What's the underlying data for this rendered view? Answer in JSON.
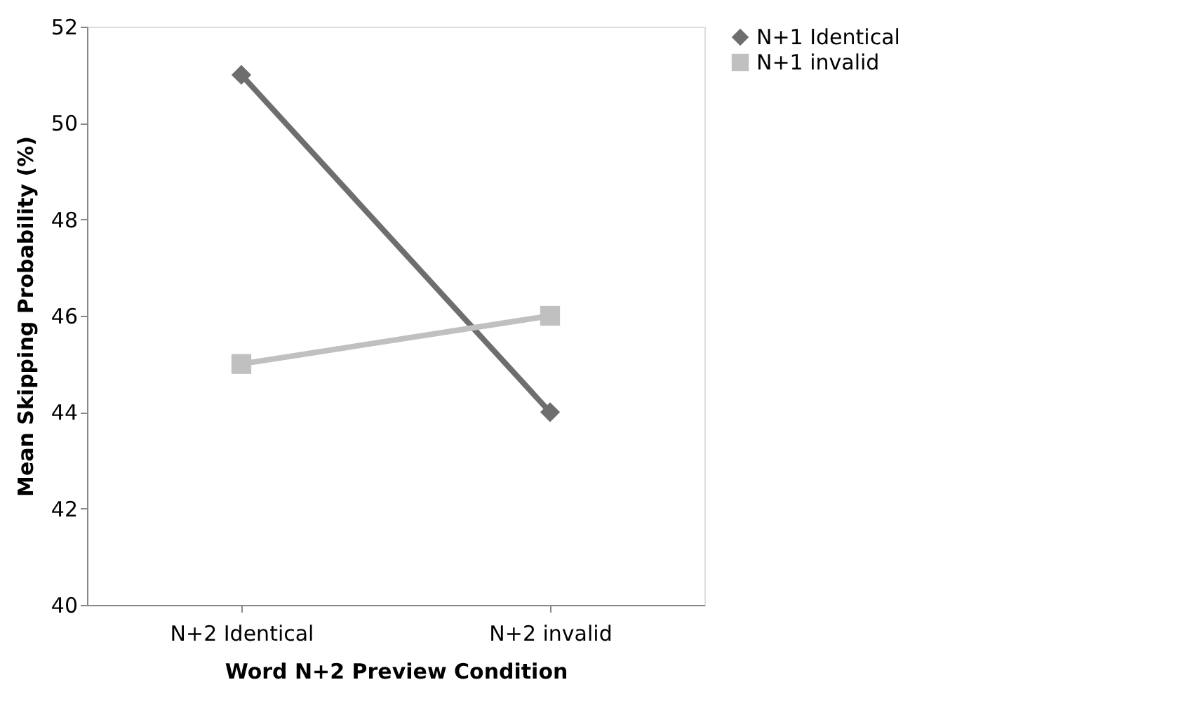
{
  "chart_data": {
    "type": "line",
    "xlabel": "Word N+2 Preview Condition",
    "ylabel": "Mean Skipping Probability (%)",
    "categories": [
      "N+2 Identical",
      "N+2 invalid"
    ],
    "series": [
      {
        "name": "N+1 Identical",
        "color": "#6e6e6e",
        "values": [
          51,
          44
        ],
        "marker": "diamond"
      },
      {
        "name": "N+1 invalid",
        "color": "#c0c0c0",
        "values": [
          45,
          46
        ],
        "marker": "square"
      }
    ],
    "ylim": [
      40,
      52
    ],
    "yticks": [
      40,
      42,
      44,
      46,
      48,
      50,
      52
    ],
    "grid": false,
    "legend": "right",
    "line_style": "solid"
  }
}
